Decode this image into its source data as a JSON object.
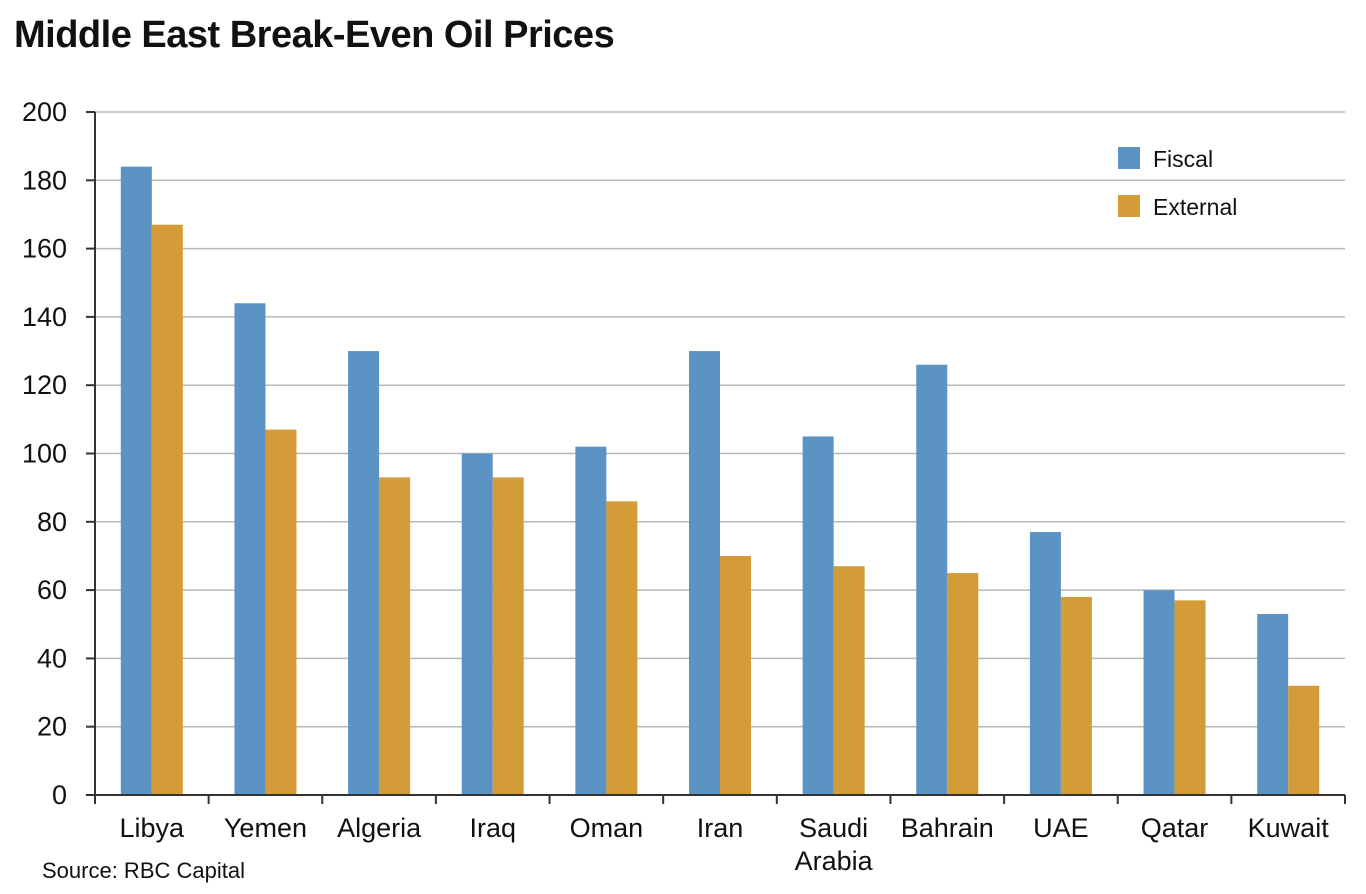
{
  "chart_data": {
    "type": "bar",
    "title": "Middle East Break-Even Oil Prices",
    "source": "Source: RBC Capital",
    "categories": [
      "Libya",
      "Yemen",
      "Algeria",
      "Iraq",
      "Oman",
      "Iran",
      "Saudi\nArabia",
      "Bahrain",
      "UAE",
      "Qatar",
      "Kuwait"
    ],
    "series": [
      {
        "name": "Fiscal",
        "color": "#5b93c5",
        "values": [
          184,
          144,
          130,
          100,
          102,
          130,
          105,
          126,
          77,
          60,
          53
        ]
      },
      {
        "name": "External",
        "color": "#d49c39",
        "values": [
          167,
          107,
          93,
          93,
          86,
          70,
          67,
          65,
          58,
          57,
          32
        ]
      }
    ],
    "xlabel": "",
    "ylabel": "",
    "ylim": [
      0,
      200
    ],
    "yticks": [
      0,
      20,
      40,
      60,
      80,
      100,
      120,
      140,
      160,
      180,
      200
    ],
    "grid": true,
    "legend": "top-right"
  }
}
